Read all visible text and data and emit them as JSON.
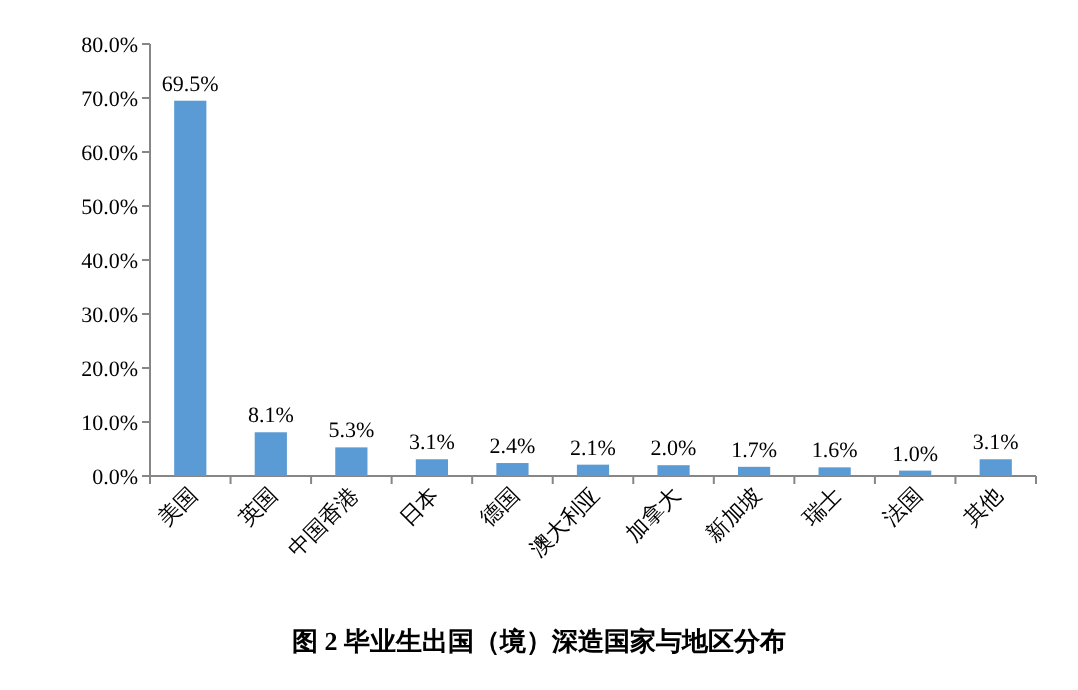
{
  "chart_data": {
    "type": "bar",
    "title": "图 2 毕业生出国（境）深造国家与地区分布",
    "categories": [
      "美国",
      "英国",
      "中国香港",
      "日本",
      "德国",
      "澳大利亚",
      "加拿大",
      "新加坡",
      "瑞士",
      "法国",
      "其他"
    ],
    "values": [
      69.5,
      8.1,
      5.3,
      3.1,
      2.4,
      2.1,
      2.0,
      1.7,
      1.6,
      1.0,
      3.1
    ],
    "value_labels": [
      "69.5%",
      "8.1%",
      "5.3%",
      "3.1%",
      "2.4%",
      "2.1%",
      "2.0%",
      "1.7%",
      "1.6%",
      "1.0%",
      "3.1%"
    ],
    "color": "#5b9bd5",
    "ylim": [
      0,
      80
    ],
    "yticks": [
      {
        "value": 0,
        "label": "0.0%"
      },
      {
        "value": 10,
        "label": "10.0%"
      },
      {
        "value": 20,
        "label": "20.0%"
      },
      {
        "value": 30,
        "label": "30.0%"
      },
      {
        "value": 40,
        "label": "40.0%"
      },
      {
        "value": 50,
        "label": "50.0%"
      },
      {
        "value": 60,
        "label": "60.0%"
      },
      {
        "value": 70,
        "label": "70.0%"
      },
      {
        "value": 80,
        "label": "80.0%"
      }
    ],
    "grid": false
  }
}
